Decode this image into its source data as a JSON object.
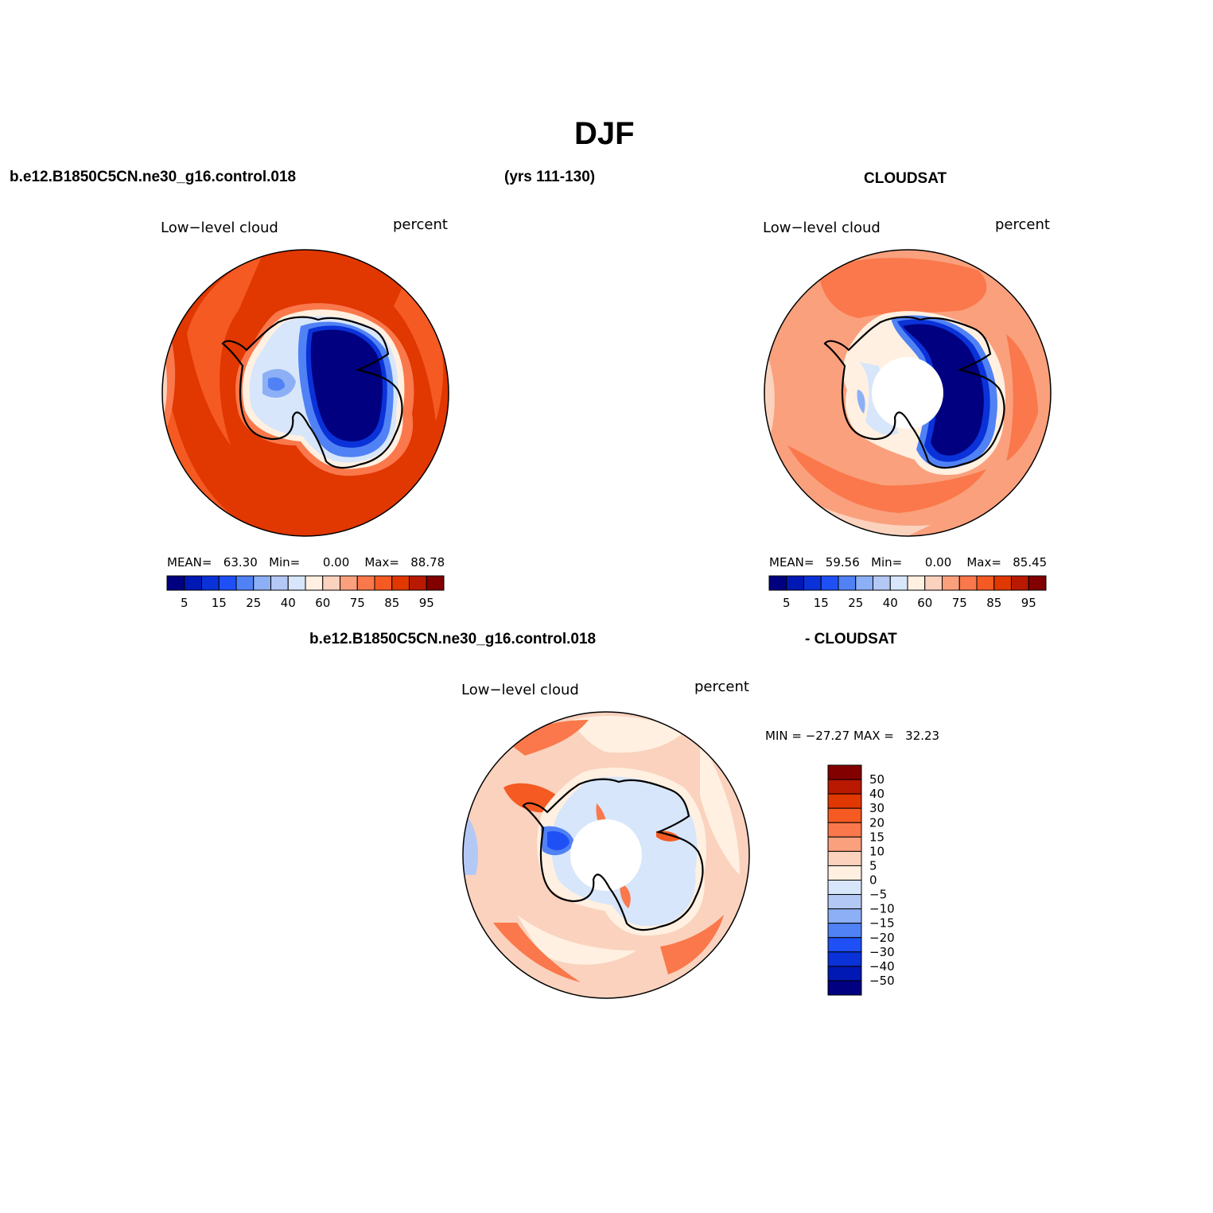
{
  "title": "DJF",
  "header": {
    "case_name": "b.e12.B1850C5CN.ne30_g16.control.018",
    "years": "(yrs 111-130)",
    "obs_name": "CLOUDSAT",
    "diff_case_name": "b.e12.B1850C5CN.ne30_g16.control.018",
    "diff_obs_name": "- CLOUDSAT"
  },
  "chart_data": [
    {
      "type": "heatmap",
      "projection": "south polar stereographic",
      "variable_label": "Low−level cloud",
      "units": "percent",
      "stats": {
        "mean_label": "MEAN=",
        "mean": "63.30",
        "min_label": "Min=",
        "min": "0.00",
        "max_label": "Max=",
        "max": "88.78"
      },
      "colorbar": {
        "orientation": "horizontal",
        "levels": [
          5,
          10,
          15,
          20,
          25,
          30,
          40,
          50,
          60,
          70,
          75,
          80,
          85,
          90,
          95
        ],
        "tick_labels": [
          "5",
          "15",
          "25",
          "40",
          "60",
          "75",
          "85",
          "95"
        ],
        "colors": [
          "#000080",
          "#0018b4",
          "#0a32d8",
          "#1e50f5",
          "#5082f5",
          "#8caff5",
          "#b4c8f5",
          "#d7e6fa",
          "#fff0e1",
          "#fad2be",
          "#faa07d",
          "#fa784b",
          "#f55a23",
          "#e13700",
          "#b91900",
          "#820000"
        ]
      },
      "field_description": {
        "ocean_ring": [
          85,
          90
        ],
        "coast_transition": [
          60,
          75
        ],
        "west_antarctica": [
          25,
          40
        ],
        "east_antarctic_plateau": [
          0,
          5
        ]
      }
    },
    {
      "type": "heatmap",
      "projection": "south polar stereographic",
      "variable_label": "Low−level cloud",
      "units": "percent",
      "stats": {
        "mean_label": "MEAN=",
        "mean": "59.56",
        "min_label": "Min=",
        "min": "0.00",
        "max_label": "Max=",
        "max": "85.45"
      },
      "colorbar": {
        "orientation": "horizontal",
        "levels": [
          5,
          10,
          15,
          20,
          25,
          30,
          40,
          50,
          60,
          70,
          75,
          80,
          85,
          90,
          95
        ],
        "tick_labels": [
          "5",
          "15",
          "25",
          "40",
          "60",
          "75",
          "85",
          "95"
        ],
        "colors": [
          "#000080",
          "#0018b4",
          "#0a32d8",
          "#1e50f5",
          "#5082f5",
          "#8caff5",
          "#b4c8f5",
          "#d7e6fa",
          "#fff0e1",
          "#fad2be",
          "#faa07d",
          "#fa784b",
          "#f55a23",
          "#e13700",
          "#b91900",
          "#820000"
        ]
      },
      "field_description": {
        "ocean_ring": [
          75,
          85
        ],
        "coast_transition": [
          60,
          70
        ],
        "west_antarctica": [
          30,
          50
        ],
        "east_antarctic_plateau": [
          0,
          5
        ],
        "polar_gap": "missing data"
      }
    },
    {
      "type": "heatmap",
      "projection": "south polar stereographic",
      "variable_label": "Low−level cloud",
      "units": "percent",
      "stats": {
        "min_label": "MIN =",
        "min": "−27.27",
        "max_label": "MAX =",
        "max": "32.23"
      },
      "colorbar": {
        "orientation": "vertical",
        "tick_labels": [
          "50",
          "40",
          "30",
          "20",
          "15",
          "10",
          "5",
          "0",
          "−5",
          "−10",
          "−15",
          "−20",
          "−30",
          "−40",
          "−50"
        ],
        "colors": [
          "#820000",
          "#b91900",
          "#e13700",
          "#f55a23",
          "#fa784b",
          "#faa07d",
          "#fad2be",
          "#fff0e1",
          "#d7e6fa",
          "#b4c8f5",
          "#8caff5",
          "#5082f5",
          "#1e50f5",
          "#0a32d8",
          "#0018b4",
          "#000080"
        ]
      },
      "field_description": {
        "ocean_background": [
          0,
          15
        ],
        "west_antarctica_coast": [
          -20,
          -15
        ],
        "polar_gap": "missing data"
      }
    }
  ]
}
